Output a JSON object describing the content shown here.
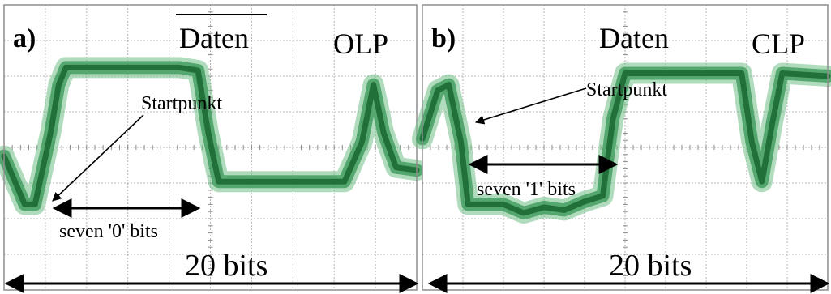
{
  "panels": [
    {
      "id": "a",
      "label": "a)",
      "data_label": "Daten",
      "data_overlined": true,
      "mode_label": "OLP",
      "start_label": "Startpunkt",
      "bits_label": "seven '0' bits",
      "span_label": "20 bits",
      "trace": [
        [
          0,
          0.47
        ],
        [
          2,
          0.3
        ],
        [
          3,
          0.3
        ],
        [
          4.5,
          0.55
        ],
        [
          5.3,
          0.72
        ],
        [
          6,
          0.78
        ],
        [
          8,
          0.78
        ],
        [
          12,
          0.78
        ],
        [
          17,
          0.78
        ],
        [
          18.8,
          0.77
        ],
        [
          19.8,
          0.55
        ],
        [
          20.8,
          0.38
        ],
        [
          22,
          0.38
        ],
        [
          26,
          0.38
        ],
        [
          31,
          0.38
        ],
        [
          33,
          0.38
        ],
        [
          34.7,
          0.52
        ],
        [
          35.8,
          0.72
        ],
        [
          36.8,
          0.55
        ],
        [
          38,
          0.43
        ],
        [
          40,
          0.42
        ]
      ]
    },
    {
      "id": "b",
      "label": "b)",
      "data_label": "Daten",
      "data_overlined": false,
      "mode_label": "CLP",
      "start_label": "Startpunkt",
      "bits_label": "seven '1' bits",
      "span_label": "20 bits",
      "trace": [
        [
          0,
          0.53
        ],
        [
          1.5,
          0.7
        ],
        [
          2.6,
          0.72
        ],
        [
          3.8,
          0.52
        ],
        [
          4.5,
          0.3
        ],
        [
          5.5,
          0.3
        ],
        [
          8,
          0.3
        ],
        [
          10,
          0.27
        ],
        [
          12,
          0.29
        ],
        [
          14,
          0.28
        ],
        [
          16,
          0.31
        ],
        [
          17.8,
          0.33
        ],
        [
          18.8,
          0.6
        ],
        [
          20,
          0.76
        ],
        [
          22,
          0.76
        ],
        [
          27,
          0.76
        ],
        [
          30,
          0.76
        ],
        [
          31.5,
          0.76
        ],
        [
          32.5,
          0.52
        ],
        [
          33.5,
          0.38
        ],
        [
          34.5,
          0.58
        ],
        [
          35.5,
          0.76
        ],
        [
          40,
          0.75
        ]
      ]
    }
  ]
}
